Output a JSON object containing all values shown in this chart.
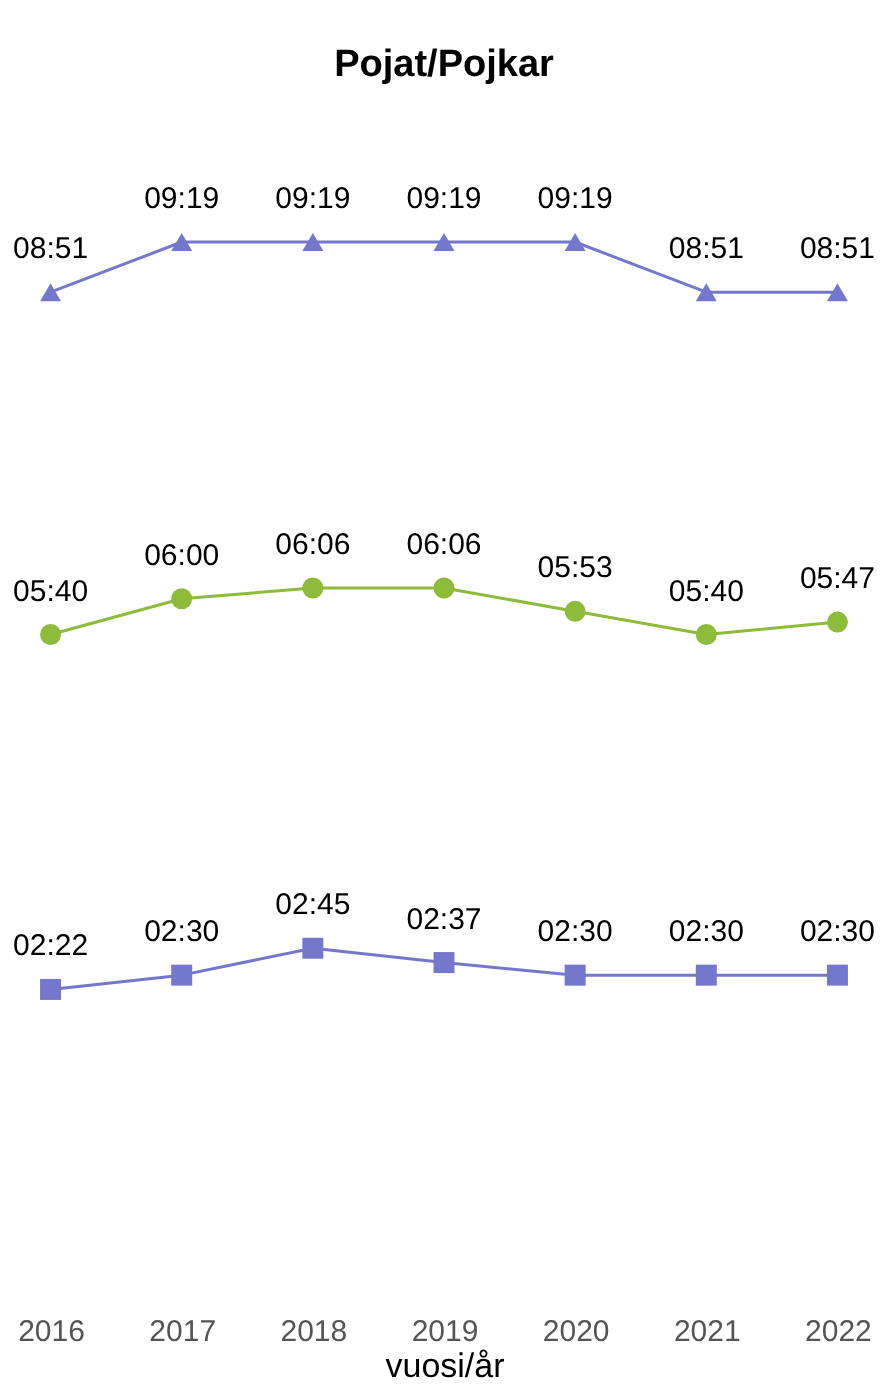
{
  "chart_data": {
    "type": "line",
    "title": "Pojat/Pojkar",
    "xlabel": "vuosi/år",
    "categories": [
      "2016",
      "2017",
      "2018",
      "2019",
      "2020",
      "2021",
      "2022"
    ],
    "series": [
      {
        "color": "#7378cc",
        "marker": "triangle",
        "values": [
          8.85,
          9.317,
          9.317,
          9.317,
          9.317,
          8.85,
          8.85
        ],
        "value_labels": [
          "08:51",
          "09:19",
          "09:19",
          "09:19",
          "09:19",
          "08:51",
          "08:51"
        ]
      },
      {
        "color": "#8dbb3a",
        "marker": "circle",
        "values": [
          5.667,
          6,
          6.1,
          6.1,
          5.883,
          5.667,
          5.783
        ],
        "value_labels": [
          "05:40",
          "06:00",
          "06:06",
          "06:06",
          "05:53",
          "05:40",
          "05:47"
        ]
      },
      {
        "color": "#7378cc",
        "marker": "square",
        "values": [
          2.367,
          2.5,
          2.75,
          2.617,
          2.5,
          2.5,
          2.5
        ],
        "value_labels": [
          "02:22",
          "02:30",
          "02:45",
          "02:37",
          "02:30",
          "02:30",
          "02:30"
        ]
      }
    ],
    "tick_labels": "x",
    "grid": false
  }
}
